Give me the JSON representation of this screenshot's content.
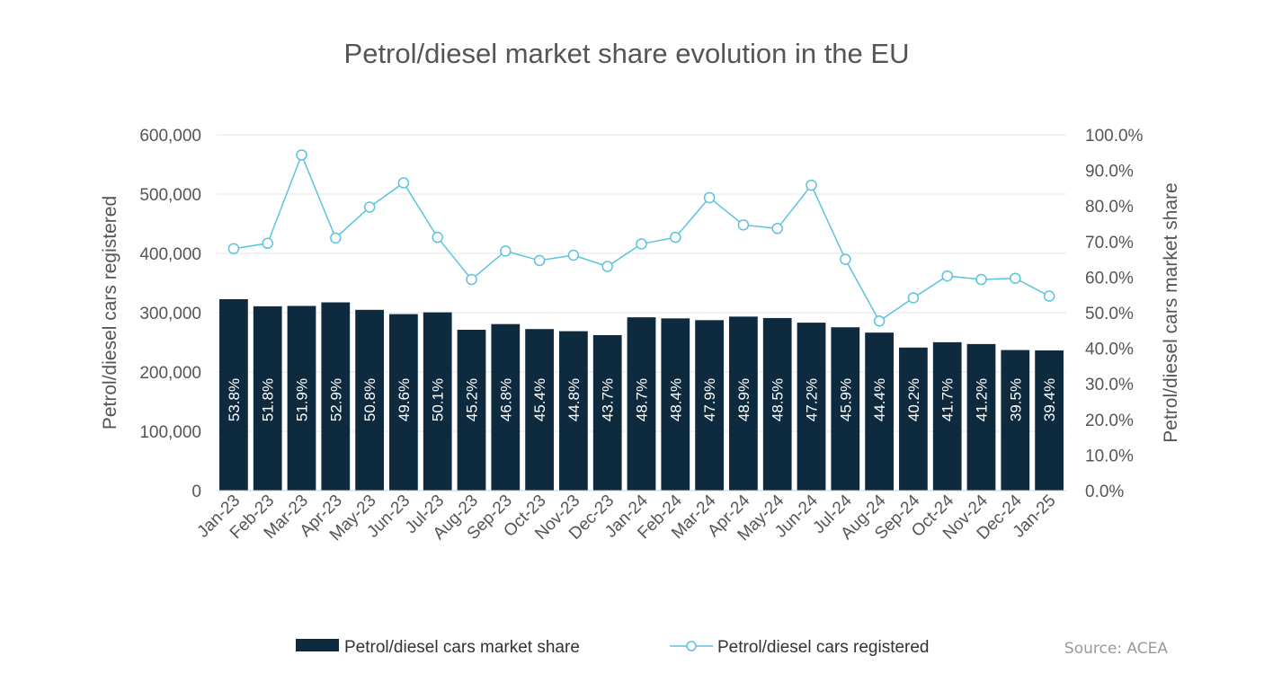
{
  "chart_data": {
    "type": "bar",
    "title": "Petrol/diesel market share evolution in the EU",
    "source": "Source: ACEA",
    "ylabel_left": "Petrol/diesel cars registered",
    "ylabel_right": "Petrol/diesel cars market share",
    "ylim_left": [
      0,
      600000
    ],
    "ylim_right": [
      0,
      100
    ],
    "y_ticks_left": [
      "0",
      "100,000",
      "200,000",
      "300,000",
      "400,000",
      "500,000",
      "600,000"
    ],
    "y_ticks_right": [
      "0.0%",
      "10.0%",
      "20.0%",
      "30.0%",
      "40.0%",
      "50.0%",
      "60.0%",
      "70.0%",
      "80.0%",
      "90.0%",
      "100.0%"
    ],
    "grid": true,
    "legend_position": "bottom",
    "colors": {
      "bar": "#0d2a3f",
      "line": "#5bc4dc",
      "grid": "#e6e6e6"
    },
    "categories": [
      "Jan-23",
      "Feb-23",
      "Mar-23",
      "Apr-23",
      "May-23",
      "Jun-23",
      "Jul-23",
      "Aug-23",
      "Sep-23",
      "Oct-23",
      "Nov-23",
      "Dec-23",
      "Jan-24",
      "Feb-24",
      "Mar-24",
      "Apr-24",
      "May-24",
      "Jun-24",
      "Jul-24",
      "Aug-24",
      "Sep-24",
      "Oct-24",
      "Nov-24",
      "Dec-24",
      "Jan-25"
    ],
    "series": [
      {
        "name": "Petrol/diesel cars market share",
        "kind": "bar",
        "axis": "right",
        "values": [
          53.8,
          51.8,
          51.9,
          52.9,
          50.8,
          49.6,
          50.1,
          45.2,
          46.8,
          45.4,
          44.8,
          43.7,
          48.7,
          48.4,
          47.9,
          48.9,
          48.5,
          47.2,
          45.9,
          44.4,
          40.2,
          41.7,
          41.2,
          39.5,
          39.4
        ],
        "labels": [
          "53.8%",
          "51.8%",
          "51.9%",
          "52.9%",
          "50.8%",
          "49.6%",
          "50.1%",
          "45.2%",
          "46.8%",
          "45.4%",
          "44.8%",
          "43.7%",
          "48.7%",
          "48.4%",
          "47.9%",
          "48.9%",
          "48.5%",
          "47.2%",
          "45.9%",
          "44.4%",
          "40.2%",
          "41.7%",
          "41.2%",
          "39.5%",
          "39.4%"
        ]
      },
      {
        "name": "Petrol/diesel cars registered",
        "kind": "line",
        "axis": "left",
        "values": [
          408000,
          417000,
          566000,
          426000,
          478000,
          519000,
          427000,
          356000,
          404000,
          388000,
          397000,
          378000,
          416000,
          427000,
          494000,
          448000,
          442000,
          515000,
          390000,
          286000,
          325000,
          362000,
          356000,
          358000,
          328000
        ]
      }
    ]
  }
}
